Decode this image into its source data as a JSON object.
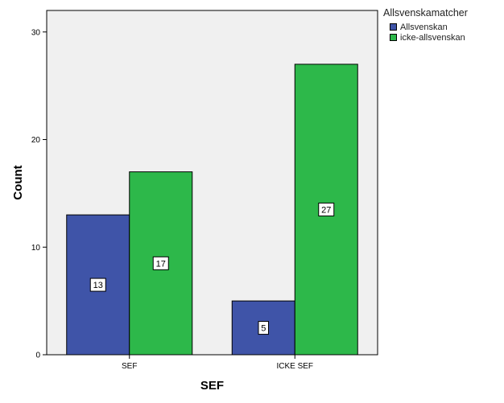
{
  "chart_data": {
    "type": "bar",
    "categories": [
      "SEF",
      "ICKE SEF"
    ],
    "series": [
      {
        "name": "Allsvenskan",
        "values": [
          13,
          5
        ],
        "color": "#3f54a8"
      },
      {
        "name": "icke-allsvenskan",
        "values": [
          17,
          27
        ],
        "color": "#2db84a"
      }
    ],
    "xlabel": "SEF",
    "ylabel": "Count",
    "ylim": [
      0,
      32
    ],
    "yticks": [
      0,
      10,
      20,
      30
    ],
    "legend_title": "Allsvenskamatcher",
    "legend_position": "top-right",
    "grid": false,
    "plot_background": "#f0f0f0"
  }
}
